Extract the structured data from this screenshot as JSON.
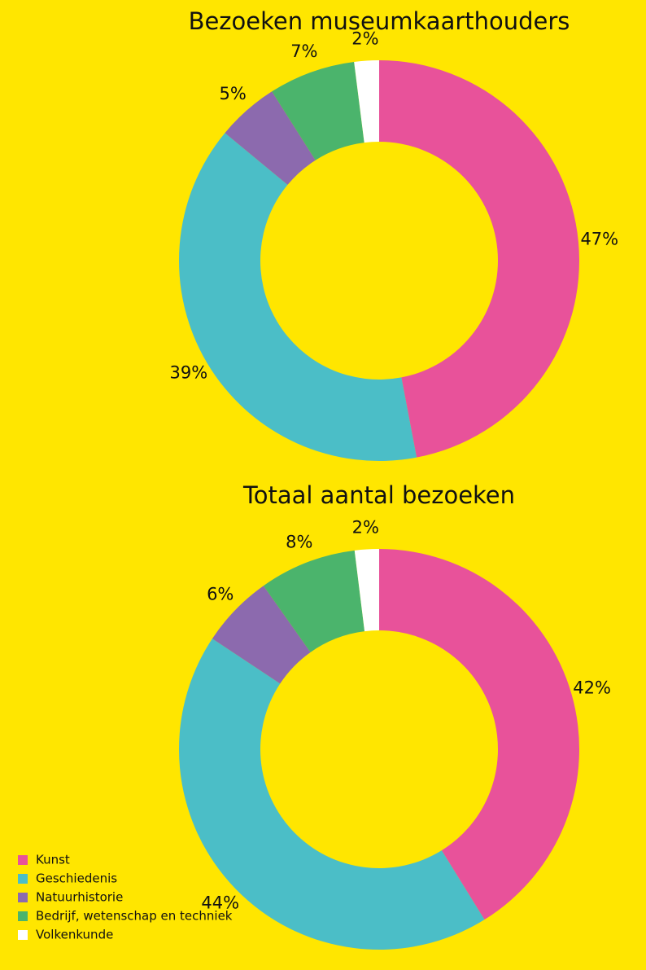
{
  "chart_data": [
    {
      "type": "pie",
      "title": "Bezoeken museumkaarthouders",
      "values": [
        47,
        39,
        5,
        7,
        2
      ],
      "value_labels": [
        "47%",
        "39%",
        "5%",
        "7%",
        "2%"
      ]
    },
    {
      "type": "pie",
      "title": "Totaal aantal bezoeken",
      "categories": [
        "Kunst",
        "Geschiedenis",
        "Natuurhistorie",
        "Bedrijf, wetenschap en techniek",
        "Volkenkunde"
      ],
      "colors": [
        "#e8529a",
        "#4bbec7",
        "#8c6aae",
        "#4bb46c",
        "#ffffff"
      ],
      "values": [
        42,
        44,
        6,
        8,
        2
      ],
      "value_labels": [
        "42%",
        "44%",
        "6%",
        "8%",
        "2%"
      ]
    }
  ]
}
